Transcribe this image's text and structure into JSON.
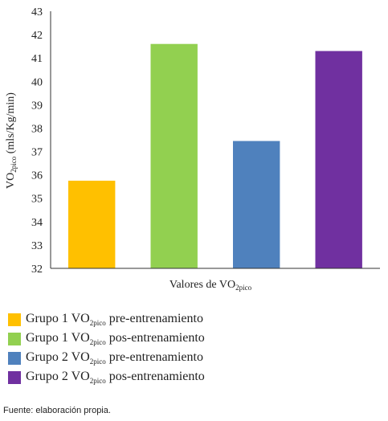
{
  "chart_data": {
    "type": "bar",
    "categories": [
      "Grupo 1 VO2pico pre-entrenamiento",
      "Grupo 1 VO2pico pos-entrenamiento",
      "Grupo 2 VO2pico pre-entrenamiento",
      "Grupo 2 VO2pico pos-entrenamiento"
    ],
    "values": [
      35.75,
      41.6,
      37.45,
      41.3
    ],
    "colors": [
      "#ffc000",
      "#92d050",
      "#4f81bd",
      "#7030a0"
    ],
    "ylim": [
      32,
      43
    ],
    "yticks": [
      "32",
      "33",
      "34",
      "35",
      "36",
      "37",
      "38",
      "39",
      "40",
      "41",
      "42",
      "43"
    ],
    "ylabel": {
      "main": "VO",
      "sub": "2pico",
      "rest": " (mls/Kg/min)"
    },
    "xlabel": {
      "main": "Valores de VO",
      "sub": "2pico"
    },
    "grid": false,
    "legend_position": "bottom"
  },
  "legend": [
    {
      "prefix": "Grupo 1 VO",
      "sub": "2pico",
      "suffix": " pre-entrenamiento",
      "color": "#ffc000"
    },
    {
      "prefix": "Grupo 1 VO",
      "sub": "2pico",
      "suffix": " pos-entrenamiento",
      "color": "#92d050"
    },
    {
      "prefix": "Grupo 2 VO",
      "sub": "2pico",
      "suffix": " pre-entrenamiento",
      "color": "#4f81bd"
    },
    {
      "prefix": "Grupo 2 VO",
      "sub": "2pico",
      "suffix": " pos-entrenamiento",
      "color": "#7030a0"
    }
  ],
  "source": "Fuente: elaboración propia."
}
